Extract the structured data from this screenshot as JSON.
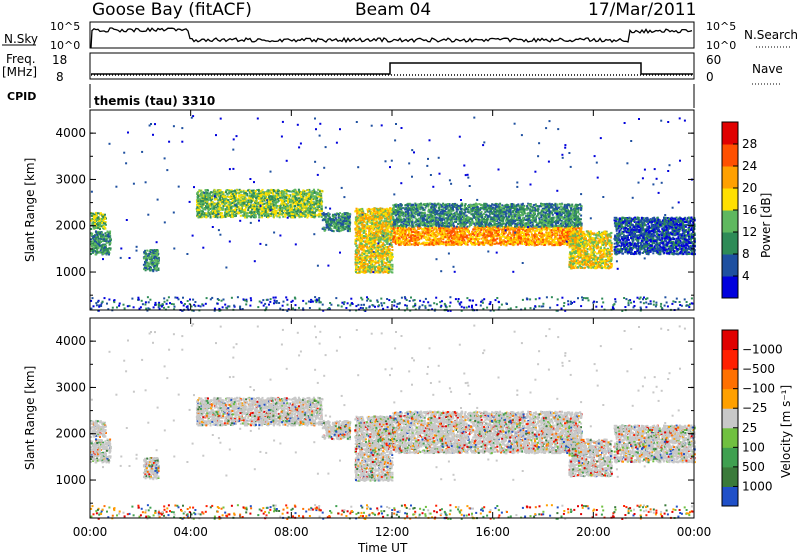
{
  "header": {
    "station": "Goose Bay (fitACF)",
    "beam": "Beam 04",
    "date": "17/Mar/2011"
  },
  "top_panels": {
    "nsky_label": "N.Sky",
    "nsearch_label": "N.Search",
    "freq_label_1": "Freq.",
    "freq_label_2": "[MHz]",
    "nave_label": "Nave",
    "cpid_label": "CPID",
    "cpid_value": "themis (tau) 3310",
    "noise_ticks": [
      "10^5",
      "10^0"
    ],
    "noise_ticks_right": [
      "10^5",
      "10^0"
    ],
    "freq_ticks": [
      "18",
      "8"
    ],
    "nave_ticks": [
      "60",
      "0"
    ]
  },
  "chart_data": [
    {
      "type": "heatmap",
      "title": "",
      "xlabel": "Time UT",
      "ylabel": "Slant Range [km]",
      "x_ticks": [
        "00:00",
        "04:00",
        "08:00",
        "12:00",
        "16:00",
        "20:00",
        "00:00"
      ],
      "xlim_hours": [
        0,
        24
      ],
      "ylim_km": [
        180,
        4500
      ],
      "y_ticks": [
        1000,
        2000,
        3000,
        4000
      ],
      "colorbar_label": "Power [dB]",
      "colorbar_ticks": [
        "4",
        "8",
        "12",
        "16",
        "20",
        "24",
        "28"
      ],
      "colorbar_colors": [
        "#0000dc",
        "#1e50a0",
        "#2e8b57",
        "#5fb85f",
        "#ffe000",
        "#ffa000",
        "#ff5000",
        "#e00000"
      ],
      "ionospheric_echo_bands_hours_km": [
        {
          "t0": 0.0,
          "t1": 0.8,
          "r0": 1400,
          "r1": 1900,
          "level": 2
        },
        {
          "t0": 0.0,
          "t1": 0.6,
          "r0": 1950,
          "r1": 2300,
          "level": 3
        },
        {
          "t0": 2.1,
          "t1": 2.7,
          "r0": 1050,
          "r1": 1500,
          "level": 2
        },
        {
          "t0": 4.2,
          "t1": 9.2,
          "r0": 2200,
          "r1": 2800,
          "level": 3
        },
        {
          "t0": 9.2,
          "t1": 10.3,
          "r0": 1900,
          "r1": 2300,
          "level": 2
        },
        {
          "t0": 10.5,
          "t1": 12.0,
          "r0": 1000,
          "r1": 2400,
          "level": 4
        },
        {
          "t0": 12.0,
          "t1": 19.5,
          "r0": 1600,
          "r1": 2000,
          "level": 5
        },
        {
          "t0": 12.0,
          "t1": 19.5,
          "r0": 2000,
          "r1": 2500,
          "level": 2
        },
        {
          "t0": 19.0,
          "t1": 20.7,
          "r0": 1100,
          "r1": 1900,
          "level": 4
        },
        {
          "t0": 20.8,
          "t1": 24.0,
          "r0": 1400,
          "r1": 2200,
          "level": 1
        }
      ]
    },
    {
      "type": "heatmap",
      "title": "",
      "xlabel": "Time UT",
      "ylabel": "Slant Range [km]",
      "x_ticks": [
        "00:00",
        "04:00",
        "08:00",
        "12:00",
        "16:00",
        "20:00",
        "00:00"
      ],
      "xlim_hours": [
        0,
        24
      ],
      "ylim_km": [
        180,
        4500
      ],
      "y_ticks": [
        1000,
        2000,
        3000,
        4000
      ],
      "colorbar_label": "Velocity [m s⁻¹]",
      "colorbar_ticks": [
        "1000",
        "500",
        "100",
        "25",
        "−25",
        "−100",
        "−500",
        "−1000"
      ],
      "colorbar_colors": [
        "#2050c8",
        "#3a7a3a",
        "#3fa050",
        "#70c040",
        "#c8c8c8",
        "#ffa000",
        "#ff7000",
        "#ff2000",
        "#e00000"
      ]
    }
  ]
}
